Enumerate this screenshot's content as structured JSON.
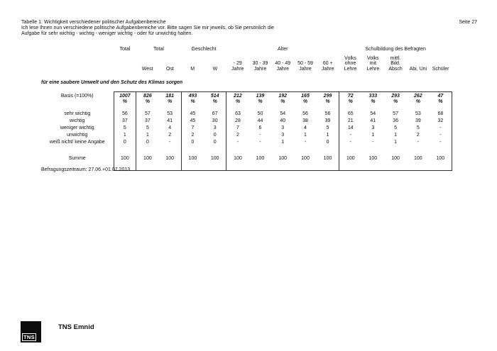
{
  "page": {
    "title_lines": [
      "Tabelle 1: Wichtigkeit verschiedener politischer Aufgabenbereiche",
      "Ich lese Ihnen nun verschiedene politische Aufgabenbereiche vor. Bitte sagen Sie mir jeweils, ob Sie persönlich die",
      "Aufgabe für sehr wichtig - wichtig - weniger wichtig - oder für unwichtig halten."
    ],
    "page_number": "Seite 27",
    "footnote": "Befragungszeitraum: 27.06.+01.07.2013",
    "footer": {
      "logo_text": "TNS",
      "brand": "TNS Emnid"
    }
  },
  "table": {
    "section_title": "für eine saubere Umwelt und den Schutz des Klimas sorgen",
    "groups": [
      {
        "label": "Total",
        "span": 1
      },
      {
        "label": "Total",
        "span": 2
      },
      {
        "label": "Geschlecht",
        "span": 2
      },
      {
        "label": "Alter",
        "span": 5
      },
      {
        "label": "Schulbildung des Befragten",
        "span": 5
      }
    ],
    "columns": [
      "",
      "West",
      "Ost",
      "M",
      "W",
      "- 29\nJahre",
      "30 - 39\nJahre",
      "40 - 49\nJahre",
      "50 - 59\nJahre",
      "60 +\nJahre",
      "Volks\nohne\nLehre",
      "Volks\nmit\nLehre",
      "mittl.\nBild.\nAbsch",
      "Abi, Uni",
      "Schüler"
    ],
    "basis_label": "Basis (=100%)",
    "basis_values": [
      "1007",
      "826",
      "181",
      "493",
      "514",
      "212",
      "139",
      "192",
      "165",
      "299",
      "72",
      "333",
      "293",
      "262",
      "47"
    ],
    "percent_symbol": "%",
    "rows": [
      {
        "label": "sehr wichtig",
        "values": [
          "56",
          "57",
          "53",
          "45",
          "67",
          "63",
          "50",
          "54",
          "56",
          "56",
          "65",
          "54",
          "57",
          "53",
          "68"
        ]
      },
      {
        "label": "wichtig",
        "values": [
          "37",
          "37",
          "41",
          "45",
          "30",
          "28",
          "44",
          "40",
          "38",
          "39",
          "21",
          "41",
          "36",
          "39",
          "32"
        ]
      },
      {
        "label": "weniger wichtig",
        "values": [
          "5",
          "5",
          "4",
          "7",
          "3",
          "7",
          "6",
          "3",
          "4",
          "5",
          "14",
          "3",
          "5",
          "5",
          "-"
        ]
      },
      {
        "label": "unwichtig",
        "values": [
          "1",
          "1",
          "2",
          "2",
          "0",
          "2",
          "-",
          "3",
          "1",
          "1",
          "-",
          "1",
          "1",
          "2",
          "-"
        ]
      },
      {
        "label": "weiß nicht/ keine Angabe",
        "values": [
          "0",
          "0",
          "-",
          "0",
          "0",
          "-",
          "-",
          "1",
          "-",
          "0",
          "-",
          "-",
          "1",
          "-",
          "-"
        ]
      }
    ],
    "summe": {
      "label": "Summe",
      "values": [
        "100",
        "100",
        "100",
        "100",
        "100",
        "100",
        "100",
        "100",
        "100",
        "100",
        "100",
        "100",
        "100",
        "100",
        "100"
      ]
    }
  },
  "chart_data": {
    "type": "table",
    "title": "Wichtigkeit: für eine saubere Umwelt und den Schutz des Klimas sorgen (%)",
    "categories": [
      "Total",
      "West",
      "Ost",
      "M",
      "W",
      "- 29 Jahre",
      "30 - 39 Jahre",
      "40 - 49 Jahre",
      "50 - 59 Jahre",
      "60 + Jahre",
      "Volks ohne Lehre",
      "Volks mit Lehre",
      "mittl. Bild. Absch",
      "Abi, Uni",
      "Schüler"
    ],
    "basis": [
      1007,
      826,
      181,
      493,
      514,
      212,
      139,
      192,
      165,
      299,
      72,
      333,
      293,
      262,
      47
    ],
    "series": [
      {
        "name": "sehr wichtig",
        "values": [
          56,
          57,
          53,
          45,
          67,
          63,
          50,
          54,
          56,
          56,
          65,
          54,
          57,
          53,
          68
        ]
      },
      {
        "name": "wichtig",
        "values": [
          37,
          37,
          41,
          45,
          30,
          28,
          44,
          40,
          38,
          39,
          21,
          41,
          36,
          39,
          32
        ]
      },
      {
        "name": "weniger wichtig",
        "values": [
          5,
          5,
          4,
          7,
          3,
          7,
          6,
          3,
          4,
          5,
          14,
          3,
          5,
          5,
          null
        ]
      },
      {
        "name": "unwichtig",
        "values": [
          1,
          1,
          2,
          2,
          0,
          2,
          null,
          3,
          1,
          1,
          null,
          1,
          1,
          2,
          null
        ]
      },
      {
        "name": "weiß nicht/ keine Angabe",
        "values": [
          0,
          0,
          null,
          0,
          0,
          null,
          null,
          1,
          null,
          0,
          null,
          null,
          1,
          null,
          null
        ]
      },
      {
        "name": "Summe",
        "values": [
          100,
          100,
          100,
          100,
          100,
          100,
          100,
          100,
          100,
          100,
          100,
          100,
          100,
          100,
          100
        ]
      }
    ]
  }
}
